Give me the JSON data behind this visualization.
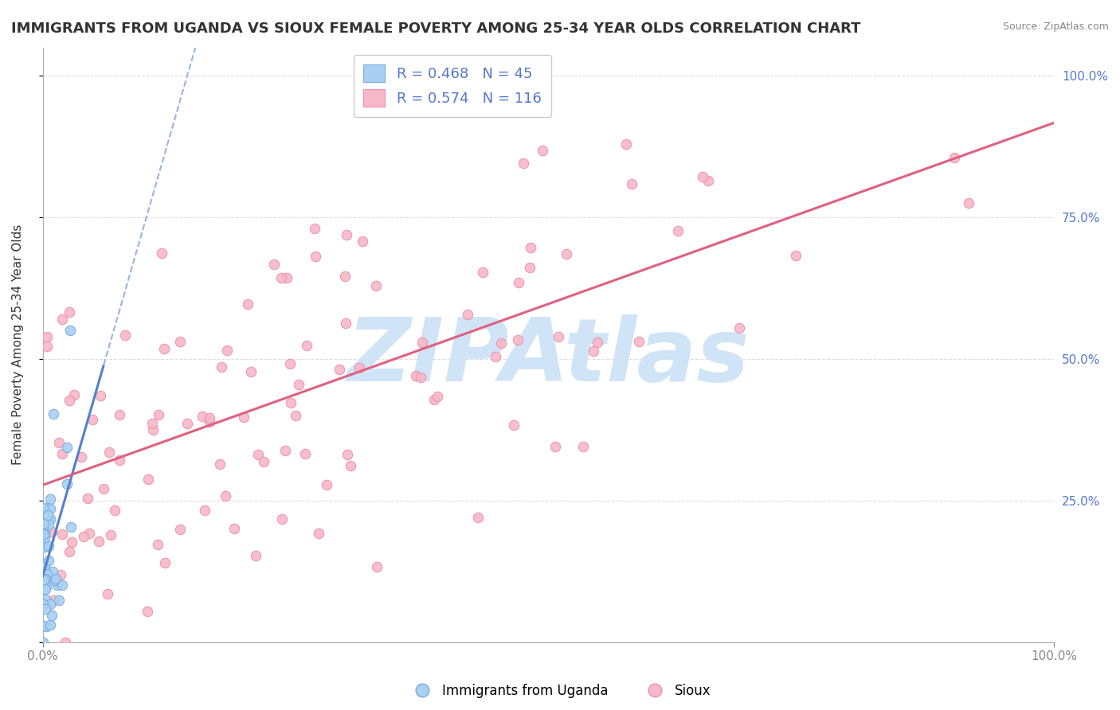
{
  "title": "IMMIGRANTS FROM UGANDA VS SIOUX FEMALE POVERTY AMONG 25-34 YEAR OLDS CORRELATION CHART",
  "source": "Source: ZipAtlas.com",
  "ylabel": "Female Poverty Among 25-34 Year Olds",
  "legend_1_label": "R = 0.468   N = 45",
  "legend_2_label": "R = 0.574   N = 116",
  "legend_series1": "Immigrants from Uganda",
  "legend_series2": "Sioux",
  "color_blue": "#A8D0F0",
  "color_pink": "#F5B8C8",
  "color_blue_line": "#5580CC",
  "color_pink_line": "#E06080",
  "color_blue_edge": "#7AAAE0",
  "color_pink_edge": "#F090A8",
  "watermark_text": "ZIPAtlas",
  "watermark_color": "#D0E4F8",
  "background_color": "#FFFFFF",
  "grid_color": "#DDDDDD",
  "tick_color": "#5577CC",
  "R1": 0.468,
  "N1": 45,
  "R2": 0.574,
  "N2": 116,
  "seed": 42,
  "title_fontsize": 13,
  "axis_label_fontsize": 11,
  "legend_fontsize": 13,
  "marker_size": 80
}
